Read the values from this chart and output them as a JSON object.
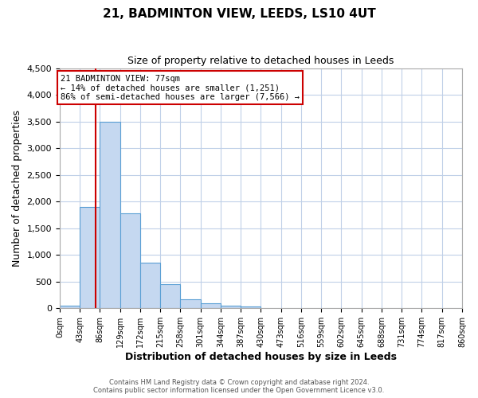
{
  "title": "21, BADMINTON VIEW, LEEDS, LS10 4UT",
  "subtitle": "Size of property relative to detached houses in Leeds",
  "xlabel": "Distribution of detached houses by size in Leeds",
  "ylabel": "Number of detached properties",
  "bar_color": "#c5d8f0",
  "bar_edge_color": "#5a9fd4",
  "background_color": "#ffffff",
  "grid_color": "#c0d0e8",
  "bin_edges": [
    0,
    43,
    86,
    129,
    172,
    215,
    258,
    301,
    344,
    387,
    430,
    473,
    516,
    559,
    602,
    645,
    688,
    731,
    774,
    817,
    860
  ],
  "bar_heights": [
    50,
    1900,
    3500,
    1775,
    850,
    450,
    175,
    100,
    55,
    30,
    0,
    0,
    0,
    0,
    0,
    0,
    0,
    0,
    0,
    0
  ],
  "ylim": [
    0,
    4500
  ],
  "yticks": [
    0,
    500,
    1000,
    1500,
    2000,
    2500,
    3000,
    3500,
    4000,
    4500
  ],
  "property_line_x": 77,
  "annotation_line1": "21 BADMINTON VIEW: 77sqm",
  "annotation_line2": "← 14% of detached houses are smaller (1,251)",
  "annotation_line3": "86% of semi-detached houses are larger (7,566) →",
  "annotation_box_color": "#ffffff",
  "annotation_box_edge_color": "#cc0000",
  "red_line_color": "#cc0000",
  "footer_line1": "Contains HM Land Registry data © Crown copyright and database right 2024.",
  "footer_line2": "Contains public sector information licensed under the Open Government Licence v3.0."
}
